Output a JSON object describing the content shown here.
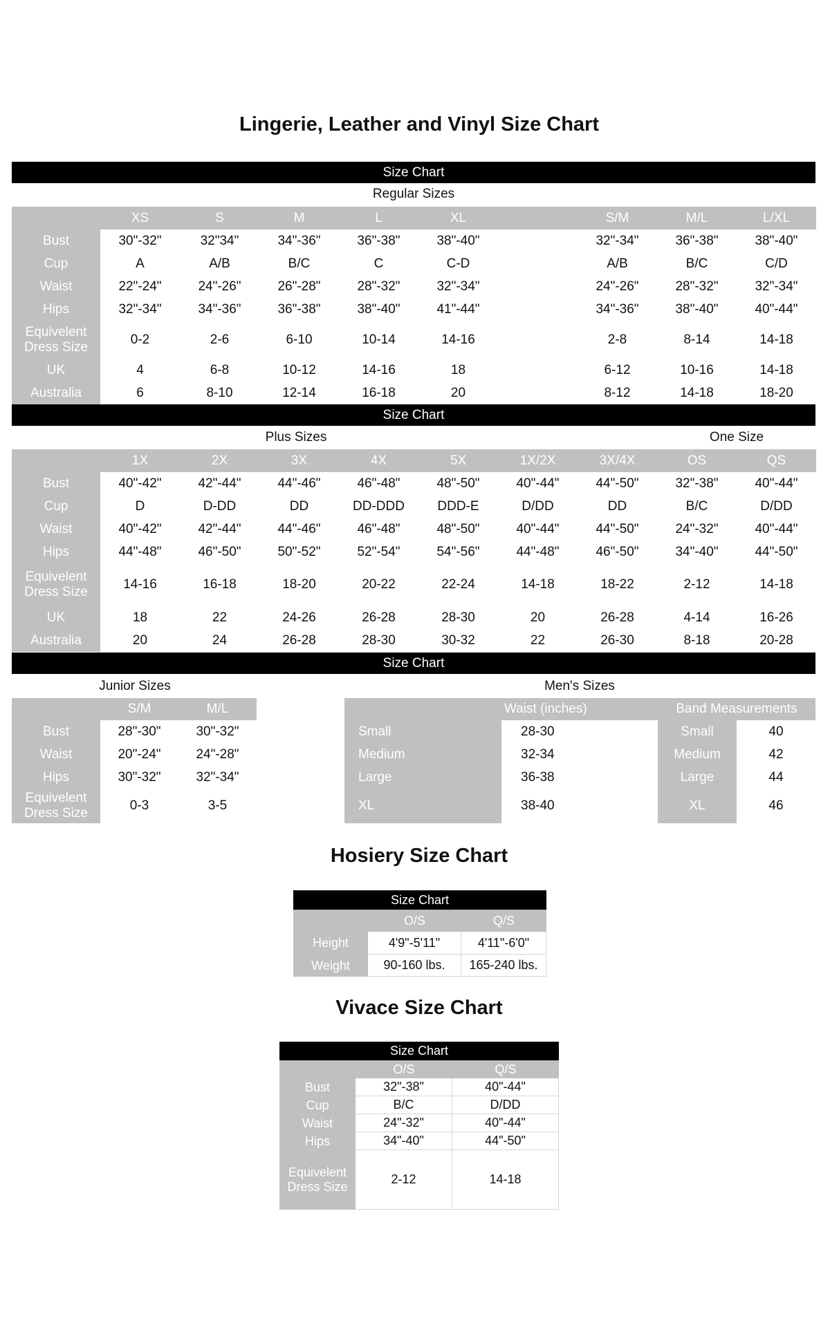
{
  "title": "Lingerie, Leather and Vinyl Size Chart",
  "bar_label": "Size Chart",
  "regular": {
    "subtitle": "Regular Sizes",
    "sizes": [
      "XS",
      "S",
      "M",
      "L",
      "XL",
      null,
      "S/M",
      "M/L",
      "L/XL"
    ],
    "rows": [
      {
        "label": "Bust",
        "values": [
          "30\"-32\"",
          "32\"34\"",
          "34\"-36\"",
          "36\"-38\"",
          "38\"-40\"",
          null,
          "32\"-34\"",
          "36\"-38\"",
          "38\"-40\""
        ]
      },
      {
        "label": "Cup",
        "values": [
          "A",
          "A/B",
          "B/C",
          "C",
          "C-D",
          null,
          "A/B",
          "B/C",
          "C/D"
        ]
      },
      {
        "label": "Waist",
        "values": [
          "22\"-24\"",
          "24\"-26\"",
          "26\"-28\"",
          "28\"-32\"",
          "32\"-34\"",
          null,
          "24\"-26\"",
          "28\"-32\"",
          "32\"-34\""
        ]
      },
      {
        "label": "Hips",
        "values": [
          "32\"-34\"",
          "34\"-36\"",
          "36\"-38\"",
          "38\"-40\"",
          "41\"-44\"",
          null,
          "34\"-36\"",
          "38\"-40\"",
          "40\"-44\""
        ]
      },
      {
        "label": "Equivelent Dress Size",
        "values": [
          "0-2",
          "2-6",
          "6-10",
          "10-14",
          "14-16",
          null,
          "2-8",
          "8-14",
          "14-18"
        ]
      },
      {
        "label": "UK",
        "values": [
          "4",
          "6-8",
          "10-12",
          "14-16",
          "18",
          null,
          "6-12",
          "10-16",
          "14-18"
        ]
      },
      {
        "label": "Australia",
        "values": [
          "6",
          "8-10",
          "12-14",
          "16-18",
          "20",
          null,
          "8-12",
          "14-18",
          "18-20"
        ]
      }
    ]
  },
  "plus": {
    "subtitle": "Plus Sizes",
    "subtitle_right": "One Size",
    "sizes": [
      "1X",
      "2X",
      "3X",
      "4X",
      "5X",
      "1X/2X",
      "3X/4X",
      "OS",
      "QS"
    ],
    "rows": [
      {
        "label": "Bust",
        "values": [
          "40\"-42\"",
          "42\"-44\"",
          "44\"-46\"",
          "46\"-48\"",
          "48\"-50\"",
          "40\"-44\"",
          "44\"-50\"",
          "32\"-38\"",
          "40\"-44\""
        ]
      },
      {
        "label": "Cup",
        "values": [
          "D",
          "D-DD",
          "DD",
          "DD-DDD",
          "DDD-E",
          "D/DD",
          "DD",
          "B/C",
          "D/DD"
        ]
      },
      {
        "label": "Waist",
        "values": [
          "40\"-42\"",
          "42\"-44\"",
          "44\"-46\"",
          "46\"-48\"",
          "48\"-50\"",
          "40\"-44\"",
          "44\"-50\"",
          "24\"-32\"",
          "40\"-44\""
        ]
      },
      {
        "label": "Hips",
        "values": [
          "44\"-48\"",
          "46\"-50\"",
          "50\"-52\"",
          "52\"-54\"",
          "54\"-56\"",
          "44\"-48\"",
          "46\"-50\"",
          "34\"-40\"",
          "44\"-50\""
        ]
      },
      {
        "label": "Equivelent Dress Size",
        "values": [
          "14-16",
          "16-18",
          "18-20",
          "20-22",
          "22-24",
          "14-18",
          "18-22",
          "2-12",
          "14-18"
        ]
      },
      {
        "label": "UK",
        "values": [
          "18",
          "22",
          "24-26",
          "26-28",
          "28-30",
          "20",
          "26-28",
          "4-14",
          "16-26"
        ]
      },
      {
        "label": "Australia",
        "values": [
          "20",
          "24",
          "26-28",
          "28-30",
          "30-32",
          "22",
          "26-30",
          "8-18",
          "20-28"
        ]
      }
    ]
  },
  "junior": {
    "subtitle": "Junior Sizes",
    "sizes": [
      "S/M",
      "M/L"
    ],
    "rows": [
      {
        "label": "Bust",
        "values": [
          "28\"-30\"",
          "30\"-32\""
        ]
      },
      {
        "label": "Waist",
        "values": [
          "20\"-24\"",
          "24\"-28\""
        ]
      },
      {
        "label": "Hips",
        "values": [
          "30\"-32\"",
          "32\"-34\""
        ]
      },
      {
        "label": "Equivelent Dress Size",
        "values": [
          "0-3",
          "3-5"
        ]
      }
    ]
  },
  "mens": {
    "subtitle": "Men's Sizes",
    "waist_header": "Waist (inches)",
    "band_header": "Band Measurements",
    "rows": [
      {
        "size": "Small",
        "waist": "28-30",
        "band_size": "Small",
        "band": "40"
      },
      {
        "size": "Medium",
        "waist": "32-34",
        "band_size": "Medium",
        "band": "42"
      },
      {
        "size": "Large",
        "waist": "36-38",
        "band_size": "Large",
        "band": "44"
      },
      {
        "size": "XL",
        "waist": "38-40",
        "band_size": "XL",
        "band": "46"
      }
    ]
  },
  "hosiery": {
    "title": "Hosiery Size Chart",
    "bar_label": "Size Chart",
    "sizes": [
      "O/S",
      "Q/S"
    ],
    "rows": [
      {
        "label": "Height",
        "values": [
          "4'9\"-5'11\"",
          "4'11\"-6'0\""
        ]
      },
      {
        "label": "Weight",
        "values": [
          "90-160 lbs.",
          "165-240 lbs."
        ]
      }
    ]
  },
  "vivace": {
    "title": "Vivace Size Chart",
    "bar_label": "Size Chart",
    "sizes": [
      "O/S",
      "Q/S"
    ],
    "rows": [
      {
        "label": "Bust",
        "values": [
          "32\"-38\"",
          "40\"-44\""
        ]
      },
      {
        "label": "Cup",
        "values": [
          "B/C",
          "D/DD"
        ]
      },
      {
        "label": "Waist",
        "values": [
          "24\"-32\"",
          "40\"-44\""
        ]
      },
      {
        "label": "Hips",
        "values": [
          "34\"-40\"",
          "44\"-50\""
        ]
      },
      {
        "label": "Equivelent Dress Size",
        "values": [
          "2-12",
          "14-18"
        ]
      }
    ]
  },
  "colors": {
    "bar": "#000000",
    "header_gray": "#c0c0c0",
    "label_text": "#ffffff"
  }
}
